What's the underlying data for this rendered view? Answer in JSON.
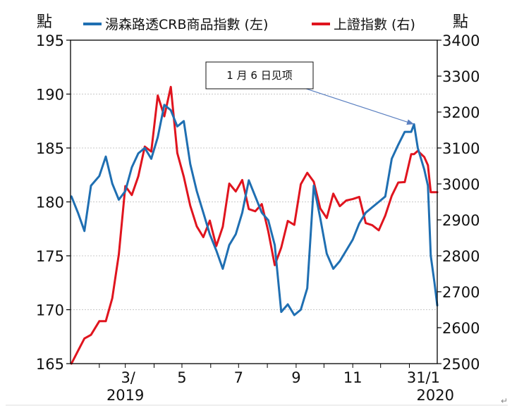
{
  "chart_data": {
    "type": "line",
    "left_unit": "點",
    "right_unit": "點",
    "legend": [
      {
        "label": "湯森路透CRB商品指數 (左)",
        "color": "#1f6fb2"
      },
      {
        "label": "上證指數 (右)",
        "color": "#e0141e"
      }
    ],
    "y_left": {
      "min": 165,
      "max": 195,
      "step": 5,
      "ticks": [
        "195",
        "190",
        "185",
        "180",
        "175",
        "170",
        "165"
      ]
    },
    "y_right": {
      "min": 2500,
      "max": 3400,
      "step": 100,
      "ticks": [
        "3400",
        "3300",
        "3200",
        "3100",
        "3000",
        "2900",
        "2800",
        "2700",
        "2600",
        "2500"
      ]
    },
    "x_range": [
      "2019-01-01",
      "2020-01-31"
    ],
    "x_ticks": [
      {
        "date": "2019-03-01",
        "label": "3/",
        "sub": "2019"
      },
      {
        "date": "2019-05-01",
        "label": "5",
        "sub": ""
      },
      {
        "date": "2019-07-01",
        "label": "7",
        "sub": ""
      },
      {
        "date": "2019-09-01",
        "label": "9",
        "sub": ""
      },
      {
        "date": "2019-11-01",
        "label": "11",
        "sub": ""
      },
      {
        "date": "2020-01-31",
        "label": "31/1",
        "sub": "2020"
      }
    ],
    "annotation": {
      "text": "1 月 6 日见项",
      "date": "2020-01-06",
      "value": 187.2
    },
    "series": [
      {
        "name": "湯森路透CRB商品指數 (左)",
        "axis": "left",
        "color": "#1f6fb2",
        "points": [
          [
            "2019-01-02",
            180.5
          ],
          [
            "2019-01-09",
            179.0
          ],
          [
            "2019-01-16",
            177.3
          ],
          [
            "2019-01-23",
            181.5
          ],
          [
            "2019-02-01",
            182.4
          ],
          [
            "2019-02-08",
            184.2
          ],
          [
            "2019-02-15",
            181.7
          ],
          [
            "2019-02-22",
            180.2
          ],
          [
            "2019-03-01",
            181.0
          ],
          [
            "2019-03-08",
            183.2
          ],
          [
            "2019-03-15",
            184.5
          ],
          [
            "2019-03-22",
            185.0
          ],
          [
            "2019-03-29",
            184.0
          ],
          [
            "2019-04-05",
            186.0
          ],
          [
            "2019-04-12",
            189.0
          ],
          [
            "2019-04-19",
            188.5
          ],
          [
            "2019-04-26",
            187.0
          ],
          [
            "2019-05-03",
            187.5
          ],
          [
            "2019-05-10",
            183.5
          ],
          [
            "2019-05-17",
            181.0
          ],
          [
            "2019-05-24",
            179.0
          ],
          [
            "2019-05-31",
            177.0
          ],
          [
            "2019-06-07",
            175.5
          ],
          [
            "2019-06-14",
            173.8
          ],
          [
            "2019-06-21",
            176.0
          ],
          [
            "2019-06-28",
            177.0
          ],
          [
            "2019-07-05",
            179.0
          ],
          [
            "2019-07-12",
            182.0
          ],
          [
            "2019-07-19",
            180.5
          ],
          [
            "2019-07-26",
            179.0
          ],
          [
            "2019-08-02",
            178.3
          ],
          [
            "2019-08-09",
            176.0
          ],
          [
            "2019-08-16",
            169.8
          ],
          [
            "2019-08-23",
            170.5
          ],
          [
            "2019-08-30",
            169.5
          ],
          [
            "2019-09-06",
            170.0
          ],
          [
            "2019-09-13",
            172.0
          ],
          [
            "2019-09-20",
            181.5
          ],
          [
            "2019-09-27",
            178.5
          ],
          [
            "2019-10-04",
            175.2
          ],
          [
            "2019-10-11",
            173.8
          ],
          [
            "2019-10-18",
            174.5
          ],
          [
            "2019-10-25",
            175.5
          ],
          [
            "2019-11-01",
            176.5
          ],
          [
            "2019-11-08",
            178.0
          ],
          [
            "2019-11-15",
            179.0
          ],
          [
            "2019-11-22",
            179.5
          ],
          [
            "2019-11-29",
            180.0
          ],
          [
            "2019-12-06",
            180.5
          ],
          [
            "2019-12-13",
            184.0
          ],
          [
            "2019-12-20",
            185.3
          ],
          [
            "2019-12-27",
            186.5
          ],
          [
            "2020-01-03",
            186.5
          ],
          [
            "2020-01-06",
            187.2
          ],
          [
            "2020-01-10",
            185.0
          ],
          [
            "2020-01-17",
            183.0
          ],
          [
            "2020-01-21",
            181.5
          ],
          [
            "2020-01-24",
            175.0
          ],
          [
            "2020-01-28",
            172.5
          ],
          [
            "2020-01-31",
            170.4
          ]
        ]
      },
      {
        "name": "上證指數 (右)",
        "axis": "right",
        "color": "#e0141e",
        "points": [
          [
            "2019-01-02",
            2465
          ],
          [
            "2019-01-09",
            2535
          ],
          [
            "2019-01-16",
            2570
          ],
          [
            "2019-01-23",
            2580
          ],
          [
            "2019-02-01",
            2618
          ],
          [
            "2019-02-08",
            2618
          ],
          [
            "2019-02-15",
            2682
          ],
          [
            "2019-02-22",
            2804
          ],
          [
            "2019-03-01",
            2994
          ],
          [
            "2019-03-08",
            2969
          ],
          [
            "2019-03-15",
            3021
          ],
          [
            "2019-03-22",
            3104
          ],
          [
            "2019-03-29",
            3090
          ],
          [
            "2019-04-05",
            3246
          ],
          [
            "2019-04-12",
            3188
          ],
          [
            "2019-04-19",
            3270
          ],
          [
            "2019-04-26",
            3086
          ],
          [
            "2019-05-03",
            3020
          ],
          [
            "2019-05-10",
            2939
          ],
          [
            "2019-05-17",
            2882
          ],
          [
            "2019-05-24",
            2852
          ],
          [
            "2019-05-31",
            2898
          ],
          [
            "2019-06-07",
            2827
          ],
          [
            "2019-06-14",
            2881
          ],
          [
            "2019-06-21",
            3001
          ],
          [
            "2019-06-28",
            2979
          ],
          [
            "2019-07-05",
            3011
          ],
          [
            "2019-07-12",
            2930
          ],
          [
            "2019-07-19",
            2924
          ],
          [
            "2019-07-26",
            2944
          ],
          [
            "2019-08-02",
            2868
          ],
          [
            "2019-08-09",
            2774
          ],
          [
            "2019-08-16",
            2823
          ],
          [
            "2019-08-23",
            2897
          ],
          [
            "2019-08-30",
            2886
          ],
          [
            "2019-09-06",
            2999
          ],
          [
            "2019-09-13",
            3031
          ],
          [
            "2019-09-20",
            3006
          ],
          [
            "2019-09-27",
            2932
          ],
          [
            "2019-10-04",
            2905
          ],
          [
            "2019-10-11",
            2973
          ],
          [
            "2019-10-18",
            2938
          ],
          [
            "2019-10-25",
            2954
          ],
          [
            "2019-11-01",
            2958
          ],
          [
            "2019-11-08",
            2964
          ],
          [
            "2019-11-15",
            2891
          ],
          [
            "2019-11-22",
            2885
          ],
          [
            "2019-11-29",
            2871
          ],
          [
            "2019-12-06",
            2912
          ],
          [
            "2019-12-13",
            2967
          ],
          [
            "2019-12-20",
            3004
          ],
          [
            "2019-12-27",
            3005
          ],
          [
            "2020-01-03",
            3083
          ],
          [
            "2020-01-06",
            3083
          ],
          [
            "2020-01-10",
            3092
          ],
          [
            "2020-01-17",
            3075
          ],
          [
            "2020-01-21",
            3052
          ],
          [
            "2020-01-24",
            2977
          ],
          [
            "2020-01-28",
            2977
          ],
          [
            "2020-01-31",
            2977
          ]
        ]
      }
    ]
  }
}
